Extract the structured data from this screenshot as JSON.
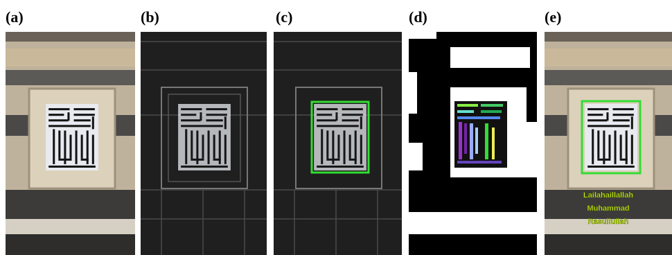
{
  "panels": [
    {
      "label": "(a)"
    },
    {
      "label": "(b)"
    },
    {
      "label": "(c)"
    },
    {
      "label": "(d)"
    },
    {
      "label": "(e)"
    }
  ],
  "recognized_text": [
    "Lailahaillallah",
    "Muhammad",
    "Rasullullah"
  ]
}
